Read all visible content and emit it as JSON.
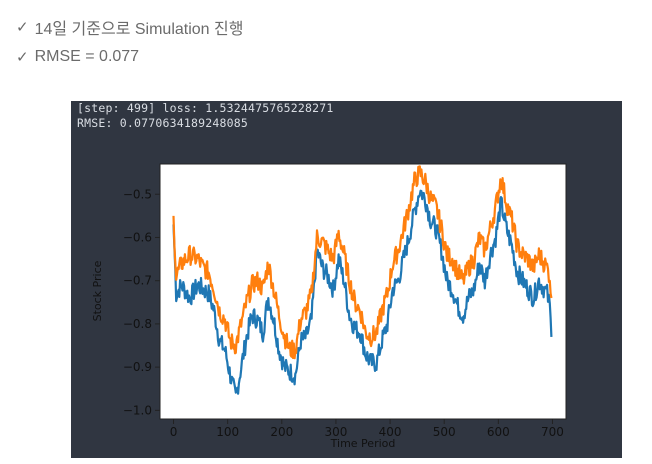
{
  "slide": {
    "bullets": [
      {
        "icon": "check-icon",
        "text": "14일 기준으로 Simulation 진행"
      },
      {
        "icon": "check-icon",
        "text": "RMSE = 0.077"
      }
    ]
  },
  "terminal": {
    "lines": [
      "[step: 499] loss: 1.5324475765228271",
      "RMSE: 0.0770634189248085"
    ]
  },
  "chart_data": {
    "type": "line",
    "title": "",
    "xlabel": "Time Period",
    "ylabel": "Stock Price",
    "xlim": [
      -25,
      725
    ],
    "ylim": [
      -1.02,
      -0.43
    ],
    "xticks": [
      0,
      100,
      200,
      300,
      400,
      500,
      600,
      700
    ],
    "yticks": [
      -1.0,
      -0.9,
      -0.8,
      -0.7,
      -0.6,
      -0.5
    ],
    "ytick_labels": [
      "−1.0",
      "−0.9",
      "−0.8",
      "−0.7",
      "−0.6",
      "−0.5"
    ],
    "grid": false,
    "legend": "none",
    "series": [
      {
        "color": "#1f77b4",
        "x": [
          0,
          5,
          15,
          30,
          45,
          55,
          65,
          75,
          85,
          95,
          105,
          115,
          125,
          135,
          145,
          155,
          165,
          175,
          185,
          195,
          205,
          215,
          225,
          235,
          245,
          255,
          265,
          275,
          285,
          295,
          305,
          315,
          325,
          335,
          345,
          355,
          365,
          375,
          385,
          395,
          405,
          415,
          425,
          435,
          445,
          455,
          465,
          475,
          485,
          495,
          505,
          515,
          525,
          535,
          545,
          555,
          565,
          575,
          585,
          595,
          605,
          615,
          625,
          635,
          645,
          655,
          665,
          675,
          685,
          690,
          695,
          698
        ],
        "y": [
          -0.57,
          -0.73,
          -0.71,
          -0.74,
          -0.71,
          -0.72,
          -0.73,
          -0.77,
          -0.84,
          -0.86,
          -0.92,
          -0.97,
          -0.9,
          -0.83,
          -0.78,
          -0.79,
          -0.82,
          -0.74,
          -0.79,
          -0.86,
          -0.9,
          -0.91,
          -0.92,
          -0.84,
          -0.83,
          -0.79,
          -0.63,
          -0.67,
          -0.69,
          -0.72,
          -0.65,
          -0.7,
          -0.78,
          -0.81,
          -0.82,
          -0.87,
          -0.89,
          -0.89,
          -0.84,
          -0.8,
          -0.72,
          -0.7,
          -0.65,
          -0.6,
          -0.54,
          -0.49,
          -0.51,
          -0.56,
          -0.58,
          -0.63,
          -0.7,
          -0.72,
          -0.76,
          -0.78,
          -0.74,
          -0.72,
          -0.66,
          -0.7,
          -0.64,
          -0.6,
          -0.52,
          -0.58,
          -0.62,
          -0.68,
          -0.7,
          -0.72,
          -0.74,
          -0.7,
          -0.72,
          -0.73,
          -0.76,
          -0.83
        ]
      },
      {
        "color": "#ff7f0e",
        "x": [
          0,
          5,
          15,
          30,
          45,
          55,
          65,
          75,
          85,
          95,
          105,
          115,
          125,
          135,
          145,
          155,
          165,
          175,
          185,
          195,
          205,
          215,
          225,
          235,
          245,
          255,
          265,
          275,
          285,
          295,
          305,
          315,
          325,
          335,
          345,
          355,
          365,
          375,
          385,
          395,
          405,
          415,
          425,
          435,
          445,
          455,
          465,
          475,
          485,
          495,
          505,
          515,
          525,
          535,
          545,
          555,
          565,
          575,
          585,
          595,
          605,
          615,
          625,
          635,
          645,
          655,
          665,
          675,
          685,
          690,
          695,
          698
        ],
        "y": [
          -0.55,
          -0.69,
          -0.66,
          -0.64,
          -0.65,
          -0.67,
          -0.68,
          -0.72,
          -0.77,
          -0.79,
          -0.84,
          -0.85,
          -0.8,
          -0.75,
          -0.71,
          -0.7,
          -0.72,
          -0.66,
          -0.72,
          -0.78,
          -0.83,
          -0.86,
          -0.86,
          -0.79,
          -0.77,
          -0.73,
          -0.6,
          -0.61,
          -0.63,
          -0.65,
          -0.59,
          -0.64,
          -0.7,
          -0.75,
          -0.77,
          -0.82,
          -0.83,
          -0.82,
          -0.77,
          -0.73,
          -0.66,
          -0.63,
          -0.58,
          -0.53,
          -0.47,
          -0.45,
          -0.47,
          -0.51,
          -0.53,
          -0.58,
          -0.64,
          -0.65,
          -0.68,
          -0.7,
          -0.67,
          -0.65,
          -0.6,
          -0.63,
          -0.58,
          -0.53,
          -0.46,
          -0.52,
          -0.56,
          -0.62,
          -0.64,
          -0.65,
          -0.67,
          -0.64,
          -0.66,
          -0.67,
          -0.69,
          -0.74
        ]
      }
    ]
  }
}
